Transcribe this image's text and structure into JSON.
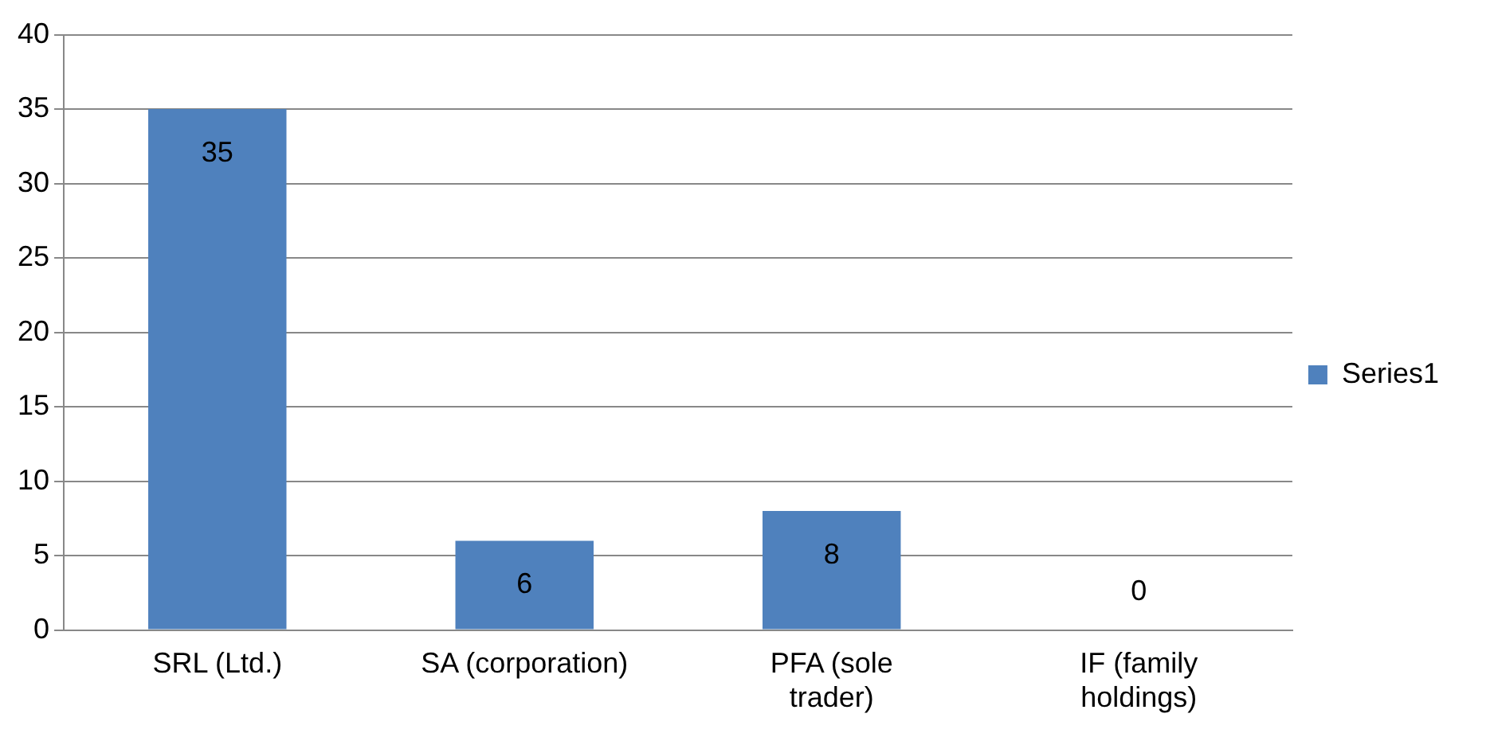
{
  "chart_data": {
    "type": "bar",
    "categories": [
      "SRL (Ltd.)",
      "SA (corporation)",
      "PFA (sole trader)",
      "IF (family holdings)"
    ],
    "series": [
      {
        "name": "Series1",
        "color": "#4f81bd",
        "values": [
          35,
          6,
          8,
          0
        ]
      }
    ],
    "ylim": [
      0,
      40
    ],
    "yticks": [
      0,
      5,
      10,
      15,
      20,
      25,
      30,
      35,
      40
    ],
    "grid": "y",
    "legend": "right",
    "data_labels": true
  }
}
